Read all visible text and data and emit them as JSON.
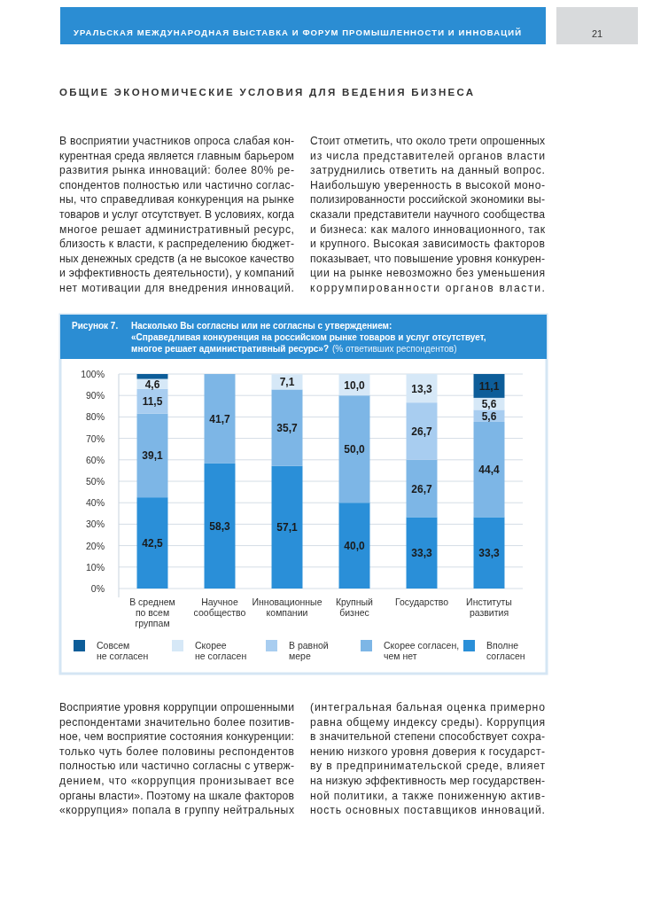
{
  "chart_data": {
    "type": "bar",
    "stacked": true,
    "title": "ОБЩИЕ ЭКОНОМИЧЕСКИЕ УСЛОВИЯ ДЛЯ ВЕДЕНИЯ БИЗНЕСА",
    "subtitle": "Насколько Вы согласны или не согласны с утверждением:\n«Справедливая конкуренция на российском рынке товаров и услуг отсутствует,\nмногое решает административный ресурс»?",
    "annotations": [
      "УРАЛЬСКАЯ МЕЖДУНАРОДНАЯ ВЫСТАВКА И ФОРУМ ПРОМЫШЛЕННОСТИ И ИННОВАЦИЙ",
      "21",
      "Рисунок 7.",
      "(% ответивших респондентов)",
      "В восприятии участников опроса слабая кон-\nкурентная среда является главным барьером\nразвития рынка инноваций: более 80% ре-\nспондентов полностью или частично соглас-\nны, что справедливая конкуренция на рынке\nтоваров и услуг отсутствует. В условиях, когда\nмногое решает административный ресурс,\nблизость к власти, к распределению бюджет-\nных денежных средств (а не высокое качество\nи эффективность деятельности), у компаний\nнет мотивации для внедрения инноваций.",
      "Стоит отметить, что около трети опрошенных\nиз числа представителей органов власти\nзатруднились ответить на данный вопрос.\nНаибольшую уверенность в высокой моно-\nполизированности российской экономики вы-\nсказали представители научного сообщества\nи бизнеса: как малого инновационного, так\nи крупного. Высокая зависимость факторов\nпоказывает, что повышение уровня конкурен-\nции на рынке невозможно без уменьшения\nкоррумпированности органов власти.",
      "Восприятие уровня коррупции опрошенными\nреспондентами значительно более позитив-\nное, чем восприятие состояния конкуренции:\nтолько чуть более половины респондентов\nполностью или частично согласны с утверж-\nдением, что «коррупция  пронизывает все\nорганы власти». Поэтому на шкале факторов\n«коррупция» попала в группу нейтральных",
      "(интегральная бальная оценка примерно\nравна общему индексу среды). Коррупция\nв значительной степени способствует сохра-\nнению низкого уровня доверия к государст-\nву в предпринимательской среде, влияет\nна низкую эффективность мер государствен-\nной политики, а также пониженную актив-\nность основных поставщиков инноваций."
    ],
    "categories": [
      "В среднем\nпо всем\nгруппам",
      "Научное\nсообщество",
      "Инновационные\nкомпании",
      "Крупный\nбизнес",
      "Государство",
      "Институты\nразвития"
    ],
    "series": [
      {
        "name": "Вполне\nсогласен",
        "color": "#2a8fd8",
        "values": [
          42.5,
          58.3,
          57.1,
          40.0,
          33.3,
          33.3
        ],
        "value_labels": [
          "42,5",
          "58,3",
          "57,1",
          "40,0",
          "33,3",
          "33,3"
        ]
      },
      {
        "name": "Скорее согласен,\nчем нет",
        "color": "#7db6e6",
        "values": [
          39.1,
          41.7,
          35.7,
          50.0,
          26.7,
          44.4
        ],
        "value_labels": [
          "39,1",
          "41,7",
          "35,7",
          "50,0",
          "26,7",
          "44,4"
        ]
      },
      {
        "name": "В равной\nмере",
        "color": "#a8cdf0",
        "values": [
          11.5,
          null,
          null,
          null,
          26.7,
          5.6
        ],
        "value_labels": [
          "11,5",
          null,
          null,
          null,
          "26,7",
          "5,6"
        ]
      },
      {
        "name": "Скорее\nне согласен",
        "color": "#d6e8f7",
        "values": [
          4.6,
          null,
          7.1,
          10.0,
          13.3,
          5.6
        ],
        "value_labels": [
          "4,6",
          null,
          "7,1",
          "10,0",
          "13,3",
          "5,6"
        ]
      },
      {
        "name": "Совсем\nне согласен",
        "color": "#0d5d99",
        "values": [
          2.3,
          null,
          null,
          null,
          null,
          11.1
        ],
        "value_labels": [
          null,
          null,
          null,
          null,
          null,
          "11,1"
        ]
      }
    ],
    "ylim": [
      0,
      100
    ],
    "yticks": [
      {
        "value": 0,
        "label": "0%"
      },
      {
        "value": 10,
        "label": "10%"
      },
      {
        "value": 20,
        "label": "20%"
      },
      {
        "value": 30,
        "label": "30%"
      },
      {
        "value": 40,
        "label": "40%"
      },
      {
        "value": 50,
        "label": "50%"
      },
      {
        "value": 60,
        "label": "60%"
      },
      {
        "value": 70,
        "label": "70%"
      },
      {
        "value": 80,
        "label": "80%"
      },
      {
        "value": 90,
        "label": "90%"
      },
      {
        "value": 100,
        "label": "100%"
      }
    ],
    "grid": "y",
    "legend": "bottom"
  }
}
